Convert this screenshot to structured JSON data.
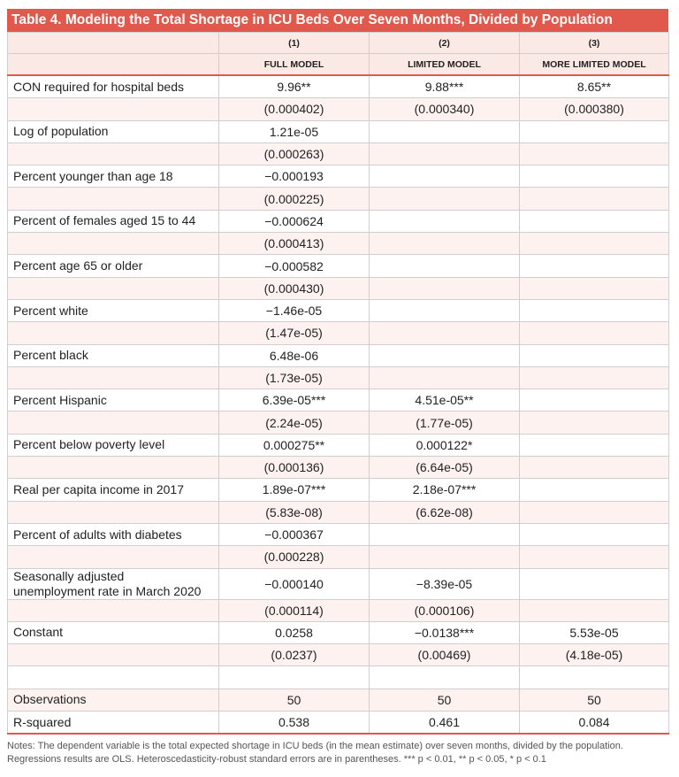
{
  "table": {
    "title": "Table 4. Modeling the Total Shortage in ICU Beds Over Seven Months, Divided by Population",
    "columns": [
      {
        "number": "(1)",
        "name": "FULL MODEL"
      },
      {
        "number": "(2)",
        "name": "LIMITED MODEL"
      },
      {
        "number": "(3)",
        "name": "MORE LIMITED MODEL"
      }
    ],
    "rows": [
      [
        "CON required for hospital beds",
        "9.96**",
        "9.88***",
        "8.65**"
      ],
      [
        null,
        "(0.000402)",
        "(0.000340)",
        "(0.000380)"
      ],
      [
        "Log of population",
        "1.21e-05",
        null,
        null
      ],
      [
        null,
        "(0.000263)",
        null,
        null
      ],
      [
        "Percent younger than age 18",
        "−0.000193",
        null,
        null
      ],
      [
        null,
        "(0.000225)",
        null,
        null
      ],
      [
        "Percent of females aged 15 to 44",
        "−0.000624",
        null,
        null
      ],
      [
        null,
        "(0.000413)",
        null,
        null
      ],
      [
        "Percent age 65 or older",
        "−0.000582",
        null,
        null
      ],
      [
        null,
        "(0.000430)",
        null,
        null
      ],
      [
        "Percent white",
        "−1.46e-05",
        null,
        null
      ],
      [
        null,
        "(1.47e-05)",
        null,
        null
      ],
      [
        "Percent black",
        "6.48e-06",
        null,
        null
      ],
      [
        null,
        "(1.73e-05)",
        null,
        null
      ],
      [
        "Percent Hispanic",
        "6.39e-05***",
        "4.51e-05**",
        null
      ],
      [
        null,
        "(2.24e-05)",
        "(1.77e-05)",
        null
      ],
      [
        "Percent below poverty level",
        "0.000275**",
        "0.000122*",
        null
      ],
      [
        null,
        "(0.000136)",
        "(6.64e-05)",
        null
      ],
      [
        "Real per capita income in 2017",
        "1.89e-07***",
        "2.18e-07***",
        null
      ],
      [
        null,
        "(5.83e-08)",
        "(6.62e-08)",
        null
      ],
      [
        "Percent of adults with diabetes",
        "−0.000367",
        null,
        null
      ],
      [
        null,
        "(0.000228)",
        null,
        null
      ],
      [
        "Seasonally adjusted\nunemployment rate in March 2020",
        "−0.000140",
        "−8.39e-05",
        null
      ],
      [
        null,
        "(0.000114)",
        "(0.000106)",
        null
      ],
      [
        "Constant",
        "0.0258",
        "−0.0138***",
        "5.53e-05"
      ],
      [
        null,
        "(0.0237)",
        "(0.00469)",
        "(4.18e-05)"
      ],
      [
        null,
        null,
        null,
        null
      ],
      [
        "Observations",
        "50",
        "50",
        "50"
      ],
      [
        "R-squared",
        "0.538",
        "0.461",
        "0.084"
      ]
    ],
    "notes": "Notes: The dependent variable is the total expected shortage in ICU beds (in the mean estimate) over seven months, divided by the population. Regressions results are OLS. Heteroscedasticity-robust standard errors are in parentheses. *** p < 0.01, ** p < 0.05, * p < 0.1"
  }
}
